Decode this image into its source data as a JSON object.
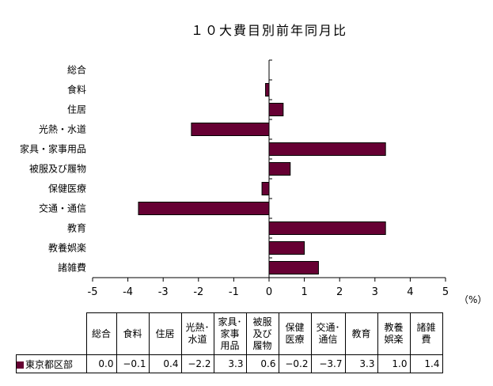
{
  "chart_data": {
    "type": "bar",
    "orientation": "horizontal",
    "title": "１０大費目別前年同月比",
    "categories": [
      "総合",
      "食料",
      "住居",
      "光熱・水道",
      "家具・家事用品",
      "被服及び履物",
      "保健医療",
      "交通・通信",
      "教育",
      "教養娯楽",
      "諸雑費"
    ],
    "series": [
      {
        "name": "東京都区部",
        "values": [
          0.0,
          -0.1,
          0.4,
          -2.2,
          3.3,
          0.6,
          -0.2,
          -3.7,
          3.3,
          1.0,
          1.4
        ]
      }
    ],
    "value_labels": [
      "0.0",
      "−0.1",
      "0.4",
      "−2.2",
      "3.3",
      "0.6",
      "−0.2",
      "−3.7",
      "3.3",
      "1.0",
      "1.4"
    ],
    "xlim": [
      -5,
      5
    ],
    "xticks": [
      "-5",
      "-4",
      "-3",
      "-2",
      "-1",
      "0",
      "1",
      "2",
      "3",
      "4",
      "5"
    ],
    "unit": "（%）",
    "grid": false,
    "bar_color": "#660033",
    "table_headers": [
      "総合",
      "食料",
      "住居",
      "光熱･\n水道",
      "家具･\n家事\n用品",
      "被服\n及び\n履物",
      "保健\n医療",
      "交通･\n通信",
      "教育",
      "教養\n娯楽",
      "諸雑\n費"
    ]
  }
}
